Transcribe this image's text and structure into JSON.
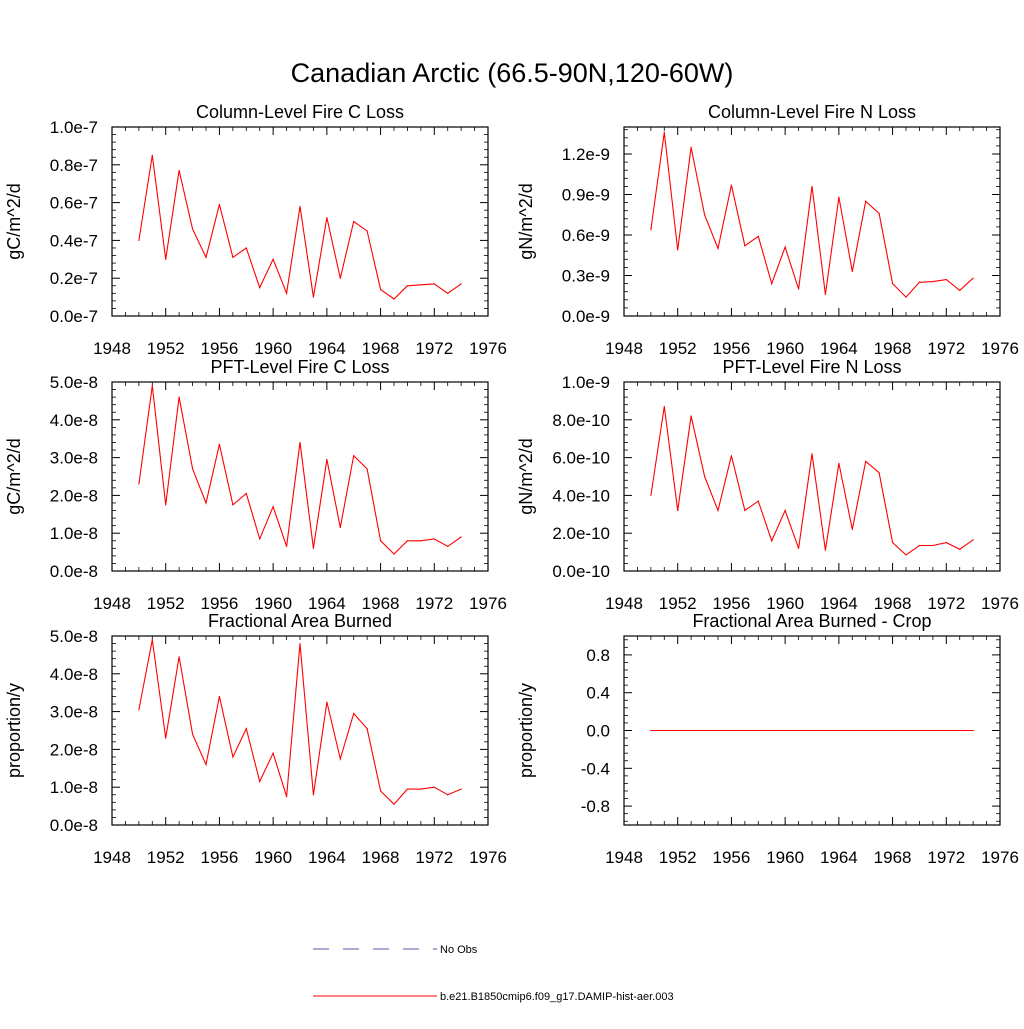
{
  "figure_title": "Canadian Arctic (66.5-90N,120-60W)",
  "legend": [
    {
      "label": "No Obs",
      "style": "dashed",
      "color": "#5a5aa0"
    },
    {
      "label": "b.e21.B1850cmip6.f09_g17.DAMIP-hist-aer.003",
      "style": "solid",
      "color": "#ff0000"
    }
  ],
  "chart_data": [
    {
      "type": "line",
      "title": "Column-Level Fire C Loss",
      "ylabel": "gC/m^2/d",
      "xlim": [
        1948,
        1976
      ],
      "xticks": [
        1948,
        1952,
        1956,
        1960,
        1964,
        1968,
        1972,
        1976
      ],
      "ylim": [
        0,
        1e-07
      ],
      "yticks": [
        0,
        2e-08,
        4e-08,
        6e-08,
        8e-08,
        1e-07
      ],
      "ytick_labels": [
        "0.0e-7",
        "0.2e-7",
        "0.4e-7",
        "0.6e-7",
        "0.8e-7",
        "1.0e-7"
      ],
      "x": [
        1950,
        1951,
        1952,
        1953,
        1954,
        1955,
        1956,
        1957,
        1958,
        1959,
        1960,
        1961,
        1962,
        1963,
        1964,
        1965,
        1966,
        1967,
        1968,
        1969,
        1970,
        1971,
        1972,
        1973,
        1974
      ],
      "series": [
        {
          "name": "b.e21.B1850cmip6.f09_g17.DAMIP-hist-aer.003",
          "color": "#ff0000",
          "values": [
            4e-08,
            8.5e-08,
            3e-08,
            7.7e-08,
            4.6e-08,
            3.1e-08,
            5.9e-08,
            3.1e-08,
            3.6e-08,
            1.5e-08,
            3e-08,
            1.2e-08,
            5.8e-08,
            1e-08,
            5.2e-08,
            2e-08,
            5e-08,
            4.5e-08,
            1.4e-08,
            9e-09,
            1.6e-08,
            1.65e-08,
            1.7e-08,
            1.2e-08,
            1.7e-08
          ]
        }
      ]
    },
    {
      "type": "line",
      "title": "Column-Level Fire N Loss",
      "ylabel": "gN/m^2/d",
      "xlim": [
        1948,
        1976
      ],
      "xticks": [
        1948,
        1952,
        1956,
        1960,
        1964,
        1968,
        1972,
        1976
      ],
      "ylim": [
        0,
        1.4e-09
      ],
      "yticks": [
        0,
        3e-10,
        6e-10,
        9e-10,
        1.2e-09
      ],
      "ytick_labels": [
        "0.0e-9",
        "0.3e-9",
        "0.6e-9",
        "0.9e-9",
        "1.2e-9"
      ],
      "x": [
        1950,
        1951,
        1952,
        1953,
        1954,
        1955,
        1956,
        1957,
        1958,
        1959,
        1960,
        1961,
        1962,
        1963,
        1964,
        1965,
        1966,
        1967,
        1968,
        1969,
        1970,
        1971,
        1972,
        1973,
        1974
      ],
      "series": [
        {
          "name": "b.e21.B1850cmip6.f09_g17.DAMIP-hist-aer.003",
          "color": "#ff0000",
          "values": [
            6.4e-10,
            1.36e-09,
            4.9e-10,
            1.25e-09,
            7.5e-10,
            5e-10,
            9.7e-10,
            5.2e-10,
            5.9e-10,
            2.4e-10,
            5.1e-10,
            2e-10,
            9.6e-10,
            1.6e-10,
            8.8e-10,
            3.3e-10,
            8.5e-10,
            7.6e-10,
            2.4e-10,
            1.4e-10,
            2.5e-10,
            2.55e-10,
            2.7e-10,
            1.9e-10,
            2.8e-10
          ]
        }
      ]
    },
    {
      "type": "line",
      "title": "PFT-Level Fire C Loss",
      "ylabel": "gC/m^2/d",
      "xlim": [
        1948,
        1976
      ],
      "xticks": [
        1948,
        1952,
        1956,
        1960,
        1964,
        1968,
        1972,
        1976
      ],
      "ylim": [
        0,
        5e-08
      ],
      "yticks": [
        0,
        1e-08,
        2e-08,
        3e-08,
        4e-08,
        5e-08
      ],
      "ytick_labels": [
        "0.0e-8",
        "1.0e-8",
        "2.0e-8",
        "3.0e-8",
        "4.0e-8",
        "5.0e-8"
      ],
      "x": [
        1950,
        1951,
        1952,
        1953,
        1954,
        1955,
        1956,
        1957,
        1958,
        1959,
        1960,
        1961,
        1962,
        1963,
        1964,
        1965,
        1966,
        1967,
        1968,
        1969,
        1970,
        1971,
        1972,
        1973,
        1974
      ],
      "series": [
        {
          "name": "b.e21.B1850cmip6.f09_g17.DAMIP-hist-aer.003",
          "color": "#ff0000",
          "values": [
            2.3e-08,
            4.9e-08,
            1.75e-08,
            4.6e-08,
            2.7e-08,
            1.8e-08,
            3.35e-08,
            1.75e-08,
            2.05e-08,
            8.5e-09,
            1.7e-08,
            6.5e-09,
            3.4e-08,
            6e-09,
            2.95e-08,
            1.15e-08,
            3.05e-08,
            2.7e-08,
            8e-09,
            4.5e-09,
            8e-09,
            8e-09,
            8.5e-09,
            6.5e-09,
            9e-09
          ]
        }
      ]
    },
    {
      "type": "line",
      "title": "PFT-Level Fire N Loss",
      "ylabel": "gN/m^2/d",
      "xlim": [
        1948,
        1976
      ],
      "xticks": [
        1948,
        1952,
        1956,
        1960,
        1964,
        1968,
        1972,
        1976
      ],
      "ylim": [
        0,
        1e-09
      ],
      "yticks": [
        0,
        2e-10,
        4e-10,
        6e-10,
        8e-10,
        1e-09
      ],
      "ytick_labels": [
        "0.0e-10",
        "2.0e-10",
        "4.0e-10",
        "6.0e-10",
        "8.0e-10",
        "1.0e-9"
      ],
      "x": [
        1950,
        1951,
        1952,
        1953,
        1954,
        1955,
        1956,
        1957,
        1958,
        1959,
        1960,
        1961,
        1962,
        1963,
        1964,
        1965,
        1966,
        1967,
        1968,
        1969,
        1970,
        1971,
        1972,
        1973,
        1974
      ],
      "series": [
        {
          "name": "b.e21.B1850cmip6.f09_g17.DAMIP-hist-aer.003",
          "color": "#ff0000",
          "values": [
            4e-10,
            8.7e-10,
            3.2e-10,
            8.2e-10,
            5e-10,
            3.2e-10,
            6.1e-10,
            3.2e-10,
            3.7e-10,
            1.6e-10,
            3.2e-10,
            1.2e-10,
            6.2e-10,
            1.1e-10,
            5.7e-10,
            2.2e-10,
            5.8e-10,
            5.2e-10,
            1.5e-10,
            8.5e-11,
            1.35e-10,
            1.35e-10,
            1.5e-10,
            1.15e-10,
            1.65e-10
          ]
        }
      ]
    },
    {
      "type": "line",
      "title": "Fractional Area Burned",
      "ylabel": "proportion/y",
      "xlim": [
        1948,
        1976
      ],
      "xticks": [
        1948,
        1952,
        1956,
        1960,
        1964,
        1968,
        1972,
        1976
      ],
      "ylim": [
        0,
        5e-08
      ],
      "yticks": [
        0,
        1e-08,
        2e-08,
        3e-08,
        4e-08,
        5e-08
      ],
      "ytick_labels": [
        "0.0e-8",
        "1.0e-8",
        "2.0e-8",
        "3.0e-8",
        "4.0e-8",
        "5.0e-8"
      ],
      "x": [
        1950,
        1951,
        1952,
        1953,
        1954,
        1955,
        1956,
        1957,
        1958,
        1959,
        1960,
        1961,
        1962,
        1963,
        1964,
        1965,
        1966,
        1967,
        1968,
        1969,
        1970,
        1971,
        1972,
        1973,
        1974
      ],
      "series": [
        {
          "name": "b.e21.B1850cmip6.f09_g17.DAMIP-hist-aer.003",
          "color": "#ff0000",
          "values": [
            3.05e-08,
            4.9e-08,
            2.3e-08,
            4.45e-08,
            2.4e-08,
            1.6e-08,
            3.4e-08,
            1.8e-08,
            2.55e-08,
            1.15e-08,
            1.9e-08,
            7.5e-09,
            4.8e-08,
            8e-09,
            3.25e-08,
            1.75e-08,
            2.95e-08,
            2.55e-08,
            9e-09,
            5.5e-09,
            9.5e-09,
            9.5e-09,
            1e-08,
            8e-09,
            9.5e-09
          ]
        }
      ]
    },
    {
      "type": "line",
      "title": "Fractional Area Burned - Crop",
      "ylabel": "proportion/y",
      "xlim": [
        1948,
        1976
      ],
      "xticks": [
        1948,
        1952,
        1956,
        1960,
        1964,
        1968,
        1972,
        1976
      ],
      "ylim": [
        -1.0,
        1.0
      ],
      "yticks": [
        -0.8,
        -0.4,
        0.0,
        0.4,
        0.8
      ],
      "ytick_labels": [
        "-0.8",
        "-0.4",
        "0.0",
        "0.4",
        "0.8"
      ],
      "x": [
        1950,
        1951,
        1952,
        1953,
        1954,
        1955,
        1956,
        1957,
        1958,
        1959,
        1960,
        1961,
        1962,
        1963,
        1964,
        1965,
        1966,
        1967,
        1968,
        1969,
        1970,
        1971,
        1972,
        1973,
        1974
      ],
      "series": [
        {
          "name": "b.e21.B1850cmip6.f09_g17.DAMIP-hist-aer.003",
          "color": "#ff0000",
          "values": [
            0,
            0,
            0,
            0,
            0,
            0,
            0,
            0,
            0,
            0,
            0,
            0,
            0,
            0,
            0,
            0,
            0,
            0,
            0,
            0,
            0,
            0,
            0,
            0,
            0
          ]
        }
      ]
    }
  ]
}
